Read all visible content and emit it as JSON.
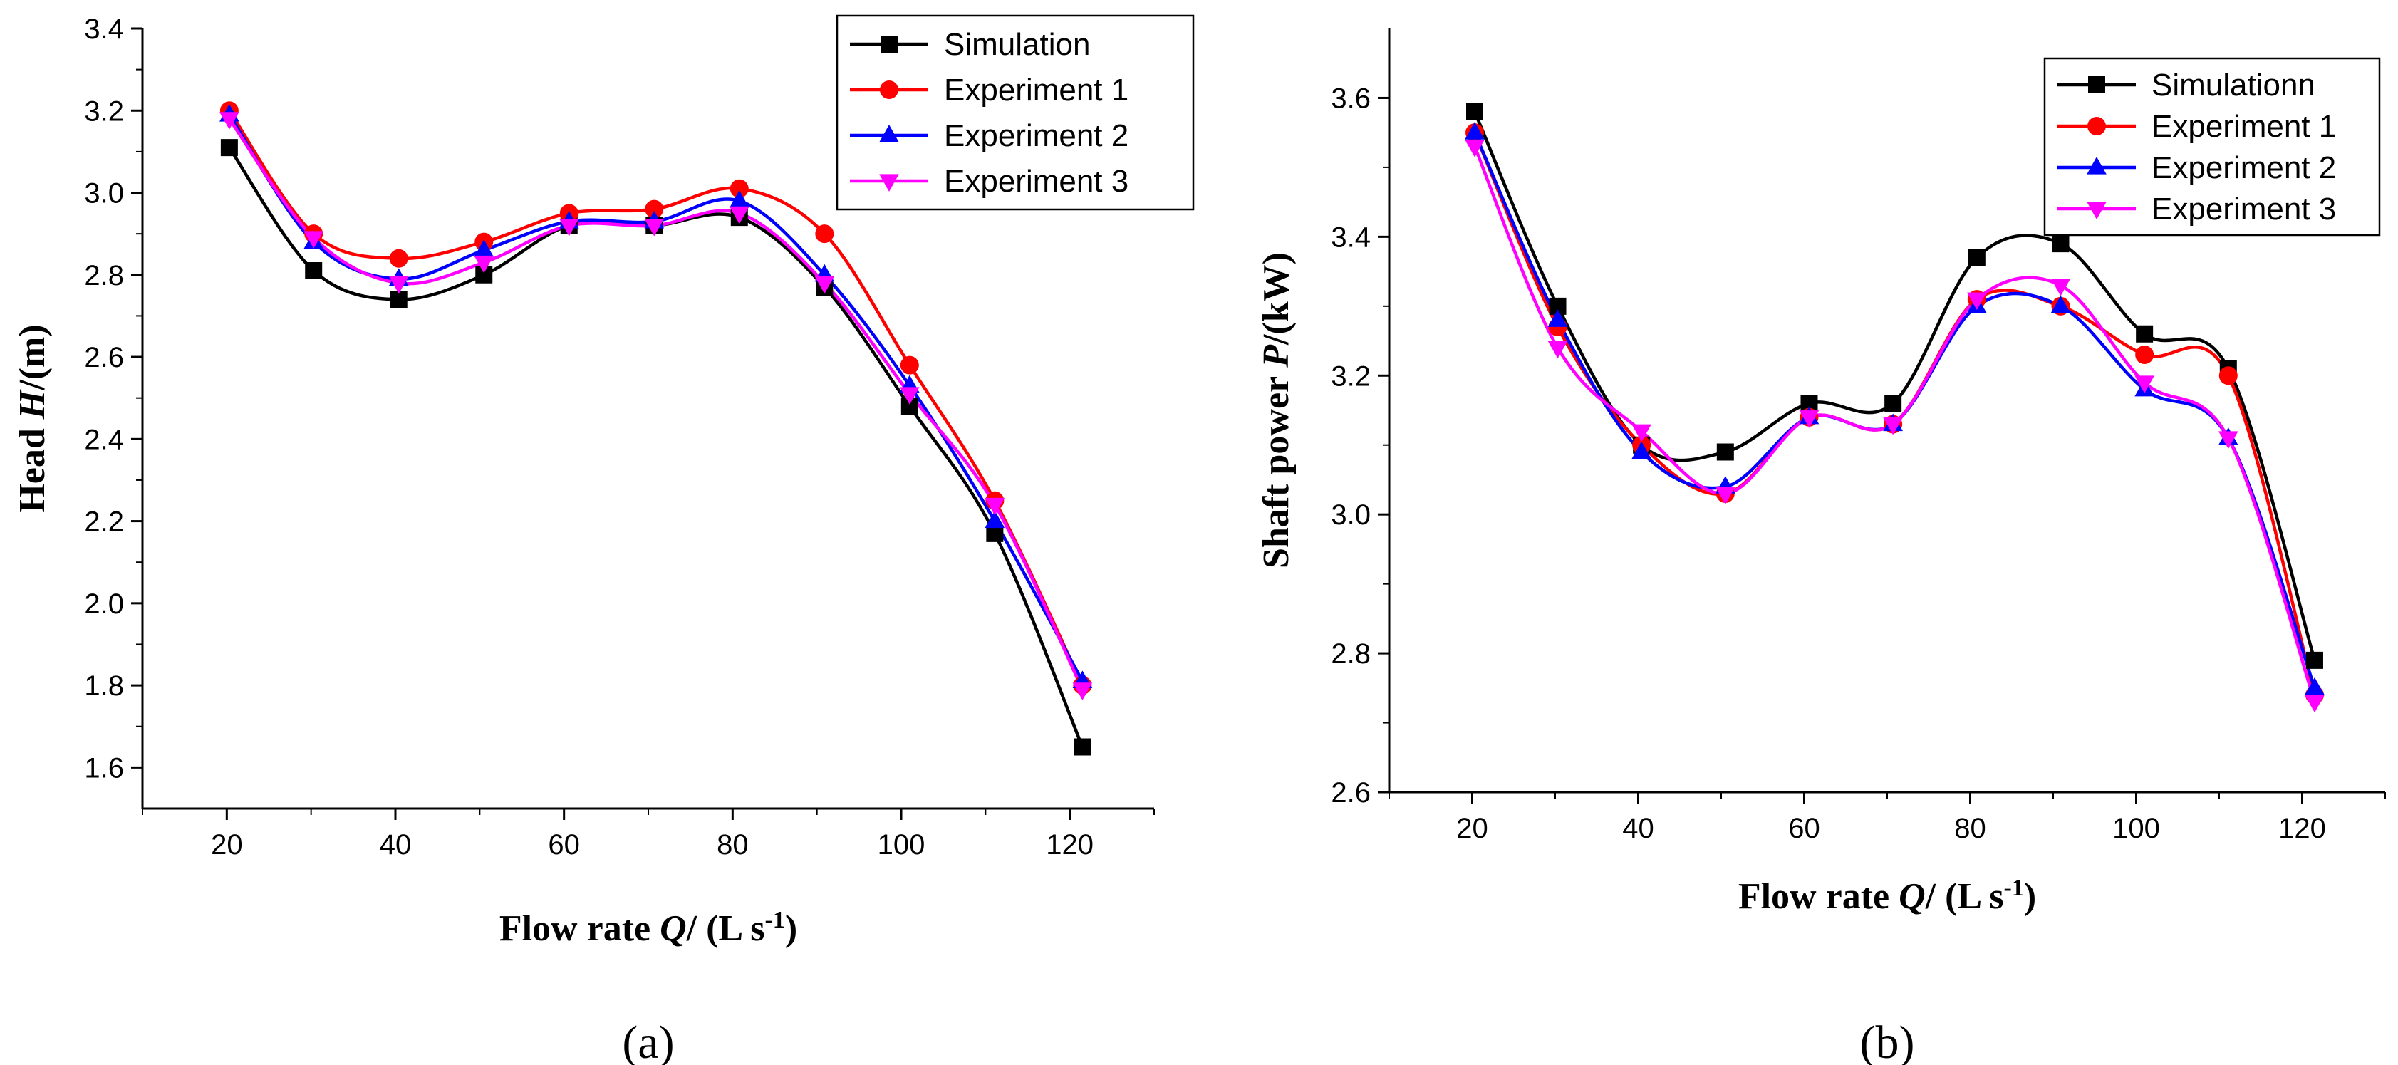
{
  "figure": {
    "title": ""
  },
  "chart_data": [
    {
      "type": "line",
      "panel_label": "(a)",
      "title": "",
      "xlabel": {
        "main": "Flow rate ",
        "var": "Q",
        "tail": "/ (L s",
        "sup": "-1",
        "end": ")"
      },
      "ylabel": {
        "main": "Head ",
        "var": "H",
        "tail": "/(m)"
      },
      "xlim": [
        10,
        130
      ],
      "ylim": [
        1.5,
        3.4
      ],
      "xticks": [
        20,
        40,
        60,
        80,
        100,
        120
      ],
      "yticks": [
        1.6,
        1.8,
        2.0,
        2.2,
        2.4,
        2.6,
        2.8,
        3.0,
        3.2,
        3.4
      ],
      "ytick_decimals": 1,
      "grid": false,
      "legend_position": "top-right",
      "x": [
        20.3,
        30.3,
        40.4,
        50.5,
        60.6,
        70.7,
        80.8,
        90.9,
        101.0,
        111.1,
        121.5
      ],
      "series": [
        {
          "name": "Simulation",
          "color": "#000000",
          "marker": "square",
          "values": [
            3.11,
            2.81,
            2.74,
            2.8,
            2.92,
            2.92,
            2.94,
            2.77,
            2.48,
            2.17,
            1.65
          ]
        },
        {
          "name": "Experiment 1",
          "color": "#ff0000",
          "marker": "circle",
          "values": [
            3.2,
            2.9,
            2.84,
            2.88,
            2.95,
            2.96,
            3.01,
            2.9,
            2.58,
            2.25,
            1.8
          ]
        },
        {
          "name": "Experiment 2",
          "color": "#0000ff",
          "marker": "triangle-up",
          "values": [
            3.19,
            2.88,
            2.79,
            2.86,
            2.93,
            2.93,
            2.98,
            2.8,
            2.53,
            2.2,
            1.81
          ]
        },
        {
          "name": "Experiment 3",
          "color": "#ff00ff",
          "marker": "triangle-down",
          "values": [
            3.18,
            2.89,
            2.78,
            2.83,
            2.92,
            2.92,
            2.95,
            2.78,
            2.51,
            2.24,
            1.79
          ]
        }
      ]
    },
    {
      "type": "line",
      "panel_label": "(b)",
      "title": "",
      "xlabel": {
        "main": "Flow rate ",
        "var": "Q",
        "tail": "/ (L s",
        "sup": "-1",
        "end": ")"
      },
      "ylabel": {
        "main": "Shaft power ",
        "var": "P",
        "tail": "/(kW)"
      },
      "xlim": [
        10,
        130
      ],
      "ylim": [
        2.6,
        3.7
      ],
      "xticks": [
        20,
        40,
        60,
        80,
        100,
        120
      ],
      "yticks": [
        2.6,
        2.8,
        3.0,
        3.2,
        3.4,
        3.6
      ],
      "ytick_decimals": 1,
      "grid": false,
      "legend_position": "top-right",
      "x": [
        20.3,
        30.3,
        40.4,
        50.5,
        60.6,
        70.7,
        80.8,
        90.9,
        101.0,
        111.1,
        121.5
      ],
      "series": [
        {
          "name": "Simulationn",
          "color": "#000000",
          "marker": "square",
          "values": [
            3.58,
            3.3,
            3.1,
            3.09,
            3.16,
            3.16,
            3.37,
            3.39,
            3.26,
            3.21,
            2.79
          ]
        },
        {
          "name": "Experiment 1",
          "color": "#ff0000",
          "marker": "circle",
          "values": [
            3.55,
            3.27,
            3.1,
            3.03,
            3.14,
            3.13,
            3.31,
            3.3,
            3.23,
            3.2,
            2.74
          ]
        },
        {
          "name": "Experiment 2",
          "color": "#0000ff",
          "marker": "triangle-up",
          "values": [
            3.55,
            3.28,
            3.09,
            3.04,
            3.14,
            3.13,
            3.3,
            3.3,
            3.18,
            3.11,
            2.75
          ]
        },
        {
          "name": "Experiment 3",
          "color": "#ff00ff",
          "marker": "triangle-down",
          "values": [
            3.53,
            3.24,
            3.12,
            3.03,
            3.14,
            3.13,
            3.31,
            3.33,
            3.19,
            3.11,
            2.73
          ]
        }
      ]
    }
  ]
}
